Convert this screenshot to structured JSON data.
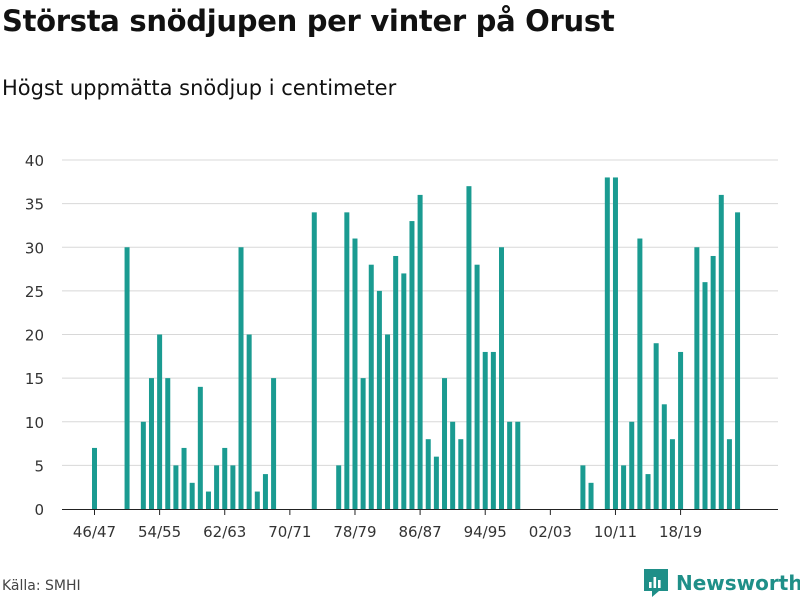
{
  "title": "Största snödjupen per vinter på Orust",
  "subtitle": "Högst uppmätta snödjup i centimeter",
  "source": "Källa: SMHI",
  "brand": {
    "name": "Newsworthy",
    "color": "#1f8f88",
    "icon": "newsworthy-logo-icon"
  },
  "chart_data": {
    "type": "bar",
    "color": "#1a9b91",
    "ylim": [
      0,
      40
    ],
    "yticks": [
      0,
      5,
      10,
      15,
      20,
      25,
      30,
      35,
      40
    ],
    "xticks": [
      "46/47",
      "54/55",
      "62/63",
      "70/71",
      "78/79",
      "86/87",
      "94/95",
      "02/03",
      "10/11",
      "18/19"
    ],
    "xlabel": "",
    "ylabel": "",
    "categories": [
      "46/47",
      "47/48",
      "48/49",
      "49/50",
      "50/51",
      "51/52",
      "52/53",
      "53/54",
      "54/55",
      "55/56",
      "56/57",
      "57/58",
      "58/59",
      "59/60",
      "60/61",
      "61/62",
      "62/63",
      "63/64",
      "64/65",
      "65/66",
      "66/67",
      "67/68",
      "68/69",
      "69/70",
      "70/71",
      "71/72",
      "72/73",
      "73/74",
      "74/75",
      "75/76",
      "76/77",
      "77/78",
      "78/79",
      "79/80",
      "80/81",
      "81/82",
      "82/83",
      "83/84",
      "84/85",
      "85/86",
      "86/87",
      "87/88",
      "88/89",
      "89/90",
      "90/91",
      "91/92",
      "92/93",
      "93/94",
      "94/95",
      "95/96",
      "96/97",
      "97/98",
      "98/99",
      "99/00",
      "00/01",
      "01/02",
      "02/03",
      "03/04",
      "04/05",
      "05/06",
      "06/07",
      "07/08",
      "08/09",
      "09/10",
      "10/11",
      "11/12",
      "12/13",
      "13/14",
      "14/15",
      "15/16",
      "16/17",
      "17/18",
      "18/19",
      "19/20",
      "20/21",
      "21/22",
      "22/23",
      "23/24",
      "24/25",
      "25/26",
      "26/27"
    ],
    "values": [
      7,
      0,
      0,
      0,
      30,
      0,
      10,
      15,
      20,
      15,
      5,
      7,
      3,
      14,
      2,
      5,
      7,
      5,
      30,
      20,
      2,
      4,
      15,
      0,
      0,
      0,
      0,
      34,
      0,
      0,
      5,
      34,
      31,
      15,
      28,
      25,
      20,
      29,
      27,
      33,
      36,
      8,
      6,
      15,
      10,
      8,
      37,
      28,
      18,
      18,
      30,
      10,
      10,
      0,
      0,
      0,
      0,
      0,
      0,
      0,
      5,
      3,
      0,
      38,
      38,
      5,
      10,
      31,
      4,
      19,
      12,
      8,
      18,
      0,
      30,
      26,
      29,
      36,
      8,
      34,
      0
    ]
  }
}
